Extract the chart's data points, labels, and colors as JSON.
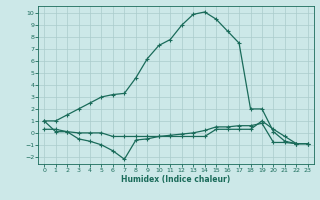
{
  "xlabel": "Humidex (Indice chaleur)",
  "bg_color": "#cce8e8",
  "grid_color": "#aacccc",
  "line_color": "#1a6b5a",
  "xlim": [
    -0.5,
    23.5
  ],
  "ylim": [
    -2.6,
    10.6
  ],
  "xticks": [
    0,
    1,
    2,
    3,
    4,
    5,
    6,
    7,
    8,
    9,
    10,
    11,
    12,
    13,
    14,
    15,
    16,
    17,
    18,
    19,
    20,
    21,
    22,
    23
  ],
  "yticks": [
    -2,
    -1,
    0,
    1,
    2,
    3,
    4,
    5,
    6,
    7,
    8,
    9,
    10
  ],
  "line1_x": [
    0,
    1,
    2,
    3,
    4,
    5,
    6,
    7,
    8,
    9,
    10,
    11,
    12,
    13,
    14,
    15,
    16,
    17,
    18,
    19,
    20,
    21,
    22,
    23
  ],
  "line1_y": [
    1.0,
    1.0,
    1.5,
    2.0,
    2.5,
    3.0,
    3.2,
    3.3,
    4.6,
    6.2,
    7.3,
    7.8,
    9.0,
    9.9,
    10.1,
    9.5,
    8.5,
    7.5,
    2.0,
    2.0,
    0.1,
    -0.7,
    -0.9,
    -0.9
  ],
  "line2_x": [
    0,
    1,
    2,
    3,
    4,
    5,
    6,
    7,
    8,
    9,
    10,
    11,
    12,
    13,
    14,
    15,
    16,
    17,
    18,
    19,
    20,
    21,
    22,
    23
  ],
  "line2_y": [
    1.0,
    0.1,
    0.1,
    -0.5,
    -0.7,
    -1.0,
    -1.5,
    -2.2,
    -0.6,
    -0.5,
    -0.3,
    -0.2,
    -0.1,
    0.0,
    0.2,
    0.5,
    0.5,
    0.6,
    0.6,
    0.8,
    -0.8,
    -0.8,
    -0.9,
    -0.9
  ],
  "line3_x": [
    0,
    1,
    2,
    3,
    4,
    5,
    6,
    7,
    8,
    9,
    10,
    11,
    12,
    13,
    14,
    15,
    16,
    17,
    18,
    19,
    20,
    21,
    22,
    23
  ],
  "line3_y": [
    0.3,
    0.3,
    0.1,
    0.0,
    0.0,
    0.0,
    -0.3,
    -0.3,
    -0.3,
    -0.3,
    -0.3,
    -0.3,
    -0.3,
    -0.3,
    -0.3,
    0.3,
    0.3,
    0.3,
    0.3,
    1.0,
    0.3,
    -0.3,
    -0.9,
    -0.9
  ]
}
